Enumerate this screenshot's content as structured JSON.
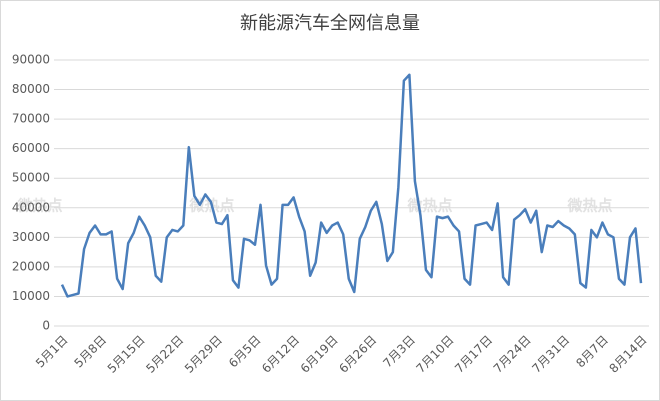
{
  "chart_data": {
    "type": "line",
    "title": "新能源汽车全网信息量",
    "watermark": "微热点",
    "categories": [
      "5月1日",
      null,
      null,
      null,
      null,
      null,
      null,
      "5月8日",
      null,
      null,
      null,
      null,
      null,
      null,
      "5月15日",
      null,
      null,
      null,
      null,
      null,
      null,
      "5月22日",
      null,
      null,
      null,
      null,
      null,
      null,
      "5月29日",
      null,
      null,
      null,
      null,
      null,
      null,
      "6月5日",
      null,
      null,
      null,
      null,
      null,
      null,
      "6月12日",
      null,
      null,
      null,
      null,
      null,
      null,
      "6月19日",
      null,
      null,
      null,
      null,
      null,
      null,
      "6月26日",
      null,
      null,
      null,
      null,
      null,
      null,
      "7月3日",
      null,
      null,
      null,
      null,
      null,
      null,
      "7月10日",
      null,
      null,
      null,
      null,
      null,
      null,
      "7月17日",
      null,
      null,
      null,
      null,
      null,
      null,
      "7月24日",
      null,
      null,
      null,
      null,
      null,
      null,
      "7月31日",
      null,
      null,
      null,
      null,
      null,
      null,
      "8月7日",
      null,
      null,
      null,
      null,
      null,
      null,
      "8月14日"
    ],
    "values": [
      14000,
      10000,
      10500,
      11000,
      26000,
      31500,
      34000,
      31000,
      31000,
      32000,
      16000,
      12500,
      28000,
      31500,
      37000,
      34000,
      30000,
      17000,
      15000,
      30000,
      32500,
      32000,
      34000,
      60500,
      44000,
      41000,
      44500,
      42000,
      35000,
      34500,
      37500,
      15500,
      13000,
      29500,
      29000,
      27500,
      41000,
      20500,
      14000,
      16000,
      41000,
      41000,
      43500,
      37000,
      32000,
      17000,
      21500,
      35000,
      31500,
      34000,
      35000,
      31000,
      16000,
      11500,
      29500,
      33500,
      39000,
      42000,
      34500,
      22000,
      25000,
      47000,
      83000,
      85000,
      49000,
      37500,
      19000,
      16500,
      37000,
      36500,
      37000,
      34000,
      32000,
      16000,
      14000,
      34000,
      34500,
      35000,
      32500,
      41500,
      16500,
      14000,
      36000,
      37500,
      39500,
      35000,
      39000,
      25000,
      34000,
      33500,
      35500,
      34000,
      33000,
      31000,
      14500,
      13000,
      32500,
      30000,
      35000,
      31000,
      30000,
      16000,
      14000,
      30000,
      33000,
      14500
    ],
    "color": "#4a7ebb",
    "ylim": [
      0,
      90000
    ],
    "yticks": [
      0,
      10000,
      20000,
      30000,
      40000,
      50000,
      60000,
      70000,
      80000,
      90000
    ],
    "grid": true
  }
}
